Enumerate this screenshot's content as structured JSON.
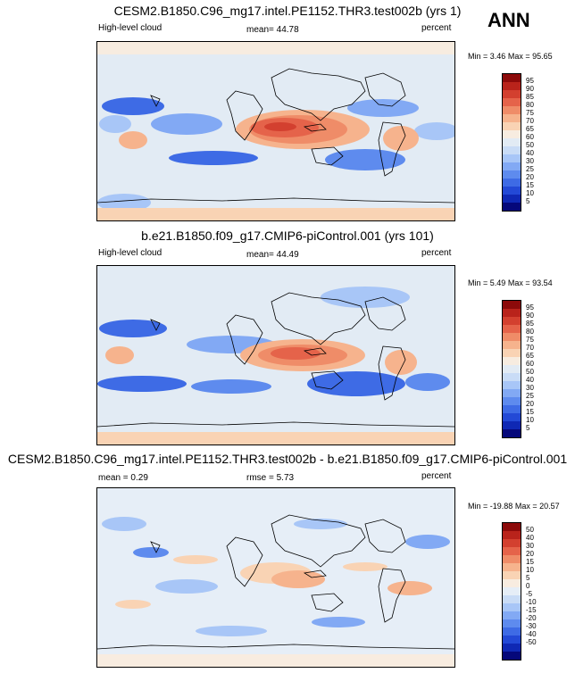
{
  "season": "ANN",
  "colors": {
    "scale_95": [
      "#05087a",
      "#0f28b4",
      "#2349d6",
      "#3e6be5",
      "#5e8bee",
      "#82a9f4",
      "#a8c6f7",
      "#c9dcf6",
      "#e2ebf4",
      "#f7ece0",
      "#f9d3b4",
      "#f6b38d",
      "#ef8c68",
      "#e5634a",
      "#d3402f",
      "#b9231b",
      "#8c0a0a"
    ],
    "diff_scale": [
      "#05087a",
      "#0f28b4",
      "#2349d6",
      "#3e6be5",
      "#5e8bee",
      "#82a9f4",
      "#a8c6f7",
      "#c9dcf6",
      "#e6eef7",
      "#f8ece0",
      "#f9d3b4",
      "#f6b38d",
      "#ef8c68",
      "#e5634a",
      "#d3402f",
      "#b9231b",
      "#8c0a0a"
    ]
  },
  "chart_data": [
    {
      "type": "heatmap",
      "title": "CESM2.B1850.C96_mg17.intel.PE1152.THR3.test002b (yrs 1)",
      "variable": "High-level cloud",
      "mean_label": "mean=",
      "mean": "44.78",
      "units": "percent",
      "min_label": "Min =",
      "min": "3.46",
      "max_label": "Max =",
      "max": "95.65",
      "levels": [
        5,
        10,
        15,
        20,
        25,
        30,
        40,
        50,
        60,
        65,
        70,
        75,
        80,
        85,
        90,
        95
      ],
      "level_labels": [
        "95",
        "90",
        "85",
        "80",
        "75",
        "70",
        "65",
        "60",
        "50",
        "40",
        "30",
        "25",
        "20",
        "15",
        "10",
        "5"
      ]
    },
    {
      "type": "heatmap",
      "title": "b.e21.B1850.f09_g17.CMIP6-piControl.001 (yrs 101)",
      "variable": "High-level cloud",
      "mean_label": "mean=",
      "mean": "44.49",
      "units": "percent",
      "min_label": "Min =",
      "min": "5.49",
      "max_label": "Max =",
      "max": "93.54",
      "levels": [
        5,
        10,
        15,
        20,
        25,
        30,
        40,
        50,
        60,
        65,
        70,
        75,
        80,
        85,
        90,
        95
      ],
      "level_labels": [
        "95",
        "90",
        "85",
        "80",
        "75",
        "70",
        "65",
        "60",
        "50",
        "40",
        "30",
        "25",
        "20",
        "15",
        "10",
        "5"
      ]
    },
    {
      "type": "heatmap",
      "title": "CESM2.B1850.C96_mg17.intel.PE1152.THR3.test002b - b.e21.B1850.f09_g17.CMIP6-piControl.001",
      "mean_label": "mean =",
      "mean": "0.29",
      "rmse_label": "rmse =",
      "rmse": "5.73",
      "units": "percent",
      "min_label": "Min =",
      "min": "-19.88",
      "max_label": "Max =",
      "max": "20.57",
      "levels": [
        -50,
        -40,
        -30,
        -20,
        -15,
        -10,
        -5,
        0,
        5,
        10,
        15,
        20,
        30,
        40,
        50
      ],
      "level_labels": [
        "50",
        "40",
        "30",
        "20",
        "15",
        "10",
        "5",
        "0",
        "-5",
        "-10",
        "-15",
        "-20",
        "-30",
        "-40",
        "-50"
      ]
    }
  ]
}
